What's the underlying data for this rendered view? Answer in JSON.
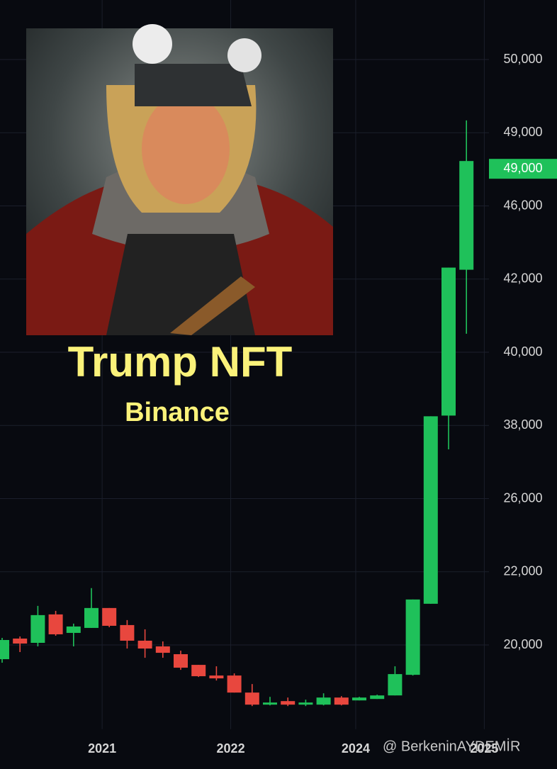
{
  "chart_data": {
    "type": "candlestick",
    "title": "Trump NFT",
    "subtitle": "Binance",
    "watermark": "@ BerkeninAYDEMİR",
    "categories": [
      null,
      null,
      null,
      null,
      null,
      null,
      null,
      null,
      null,
      null,
      null,
      null,
      null,
      null,
      null,
      null,
      null,
      null,
      null,
      null,
      null,
      null,
      null,
      null,
      null,
      null,
      null
    ],
    "series": {
      "open": [
        19612,
        20175,
        20058,
        20835,
        20330,
        20466,
        21010,
        20544,
        20117,
        19961,
        19748,
        19456,
        19165,
        19165,
        18699,
        18369,
        18466,
        18369,
        18369,
        18563,
        18485,
        18524,
        18621,
        19184,
        21126,
        38269,
        42510
      ],
      "high": [
        20194,
        20233,
        21068,
        20932,
        20583,
        21554,
        21010,
        20680,
        20427,
        20097,
        19845,
        19456,
        19417,
        19223,
        18932,
        18582,
        18563,
        18505,
        18679,
        18602,
        18582,
        18641,
        19417,
        21243,
        38250,
        42627,
        49168
      ],
      "low": [
        19515,
        19806,
        19961,
        20252,
        19961,
        20466,
        20486,
        19903,
        19650,
        19650,
        19320,
        19126,
        19029,
        18699,
        18330,
        18349,
        18330,
        18330,
        18349,
        18349,
        18485,
        18524,
        18621,
        19165,
        21126,
        34077,
        40505
      ],
      "close": [
        20136,
        20039,
        20816,
        20291,
        20505,
        21010,
        20524,
        20117,
        19903,
        19786,
        19379,
        19146,
        19087,
        18699,
        18369,
        18427,
        18369,
        18427,
        18563,
        18369,
        18563,
        18621,
        19204,
        21243,
        38250,
        42627,
        47840
      ]
    },
    "up_color": "#1fc15a",
    "down_color": "#e8473e",
    "ylim": [
      17700,
      50800
    ],
    "yticks": [
      {
        "value": 50000,
        "label": "50,000"
      },
      {
        "value": 49000,
        "label": "49,000"
      },
      {
        "value": 46000,
        "label": "46,000"
      },
      {
        "value": 42000,
        "label": "42,000"
      },
      {
        "value": 40000,
        "label": "40,000"
      },
      {
        "value": 38000,
        "label": "38,000"
      },
      {
        "value": 26000,
        "label": "26,000"
      },
      {
        "value": 22000,
        "label": "22,000"
      },
      {
        "value": 20000,
        "label": "20,000"
      }
    ],
    "xticks": [
      {
        "value": 5.6,
        "label": "2021"
      },
      {
        "value": 12.8,
        "label": "2022"
      },
      {
        "value": 19.8,
        "label": "2024"
      },
      {
        "value": 27,
        "label": "2025"
      }
    ],
    "price_tag": {
      "value": 49000,
      "label": "49,000"
    },
    "grid": true
  }
}
